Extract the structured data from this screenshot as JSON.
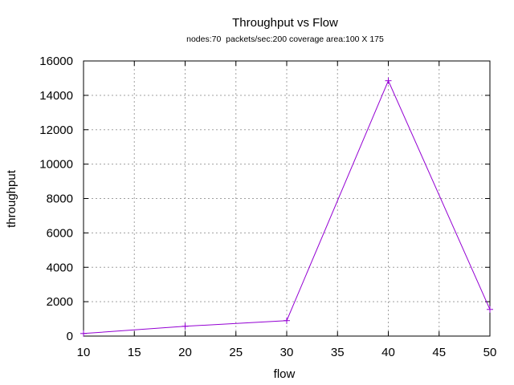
{
  "chart_data": {
    "type": "line",
    "title": "Throughput vs Flow",
    "subtitle": "nodes:70  packets/sec:200 coverage area:100 X 175",
    "xlabel": "flow",
    "ylabel": "throughput",
    "xlim": [
      10,
      50
    ],
    "ylim": [
      0,
      16000
    ],
    "xticks": [
      10,
      15,
      20,
      25,
      30,
      35,
      40,
      45,
      50
    ],
    "yticks": [
      0,
      2000,
      4000,
      6000,
      8000,
      10000,
      12000,
      14000,
      16000
    ],
    "grid": true,
    "marker": "plus",
    "series": [
      {
        "color": "#9400d3",
        "x": [
          10,
          20,
          30,
          40,
          50
        ],
        "y": [
          150,
          570,
          900,
          14850,
          1550
        ]
      }
    ]
  }
}
